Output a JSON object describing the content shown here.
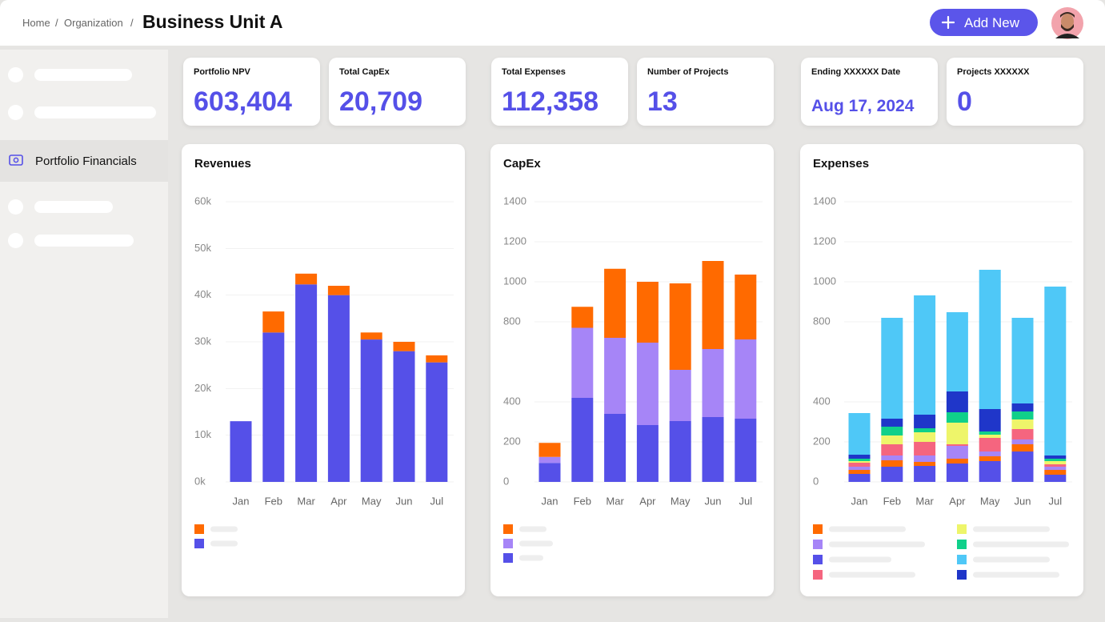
{
  "header": {
    "breadcrumb": [
      "Home",
      "Organization"
    ],
    "title": "Business Unit A",
    "button": "Add New"
  },
  "sidebar": {
    "active_item": "Portfolio Financials"
  },
  "kpis": [
    {
      "label": "Portfolio NPV",
      "value": "603,404"
    },
    {
      "label": "Total CapEx",
      "value": "20,709"
    },
    {
      "label": "Total Expenses",
      "value": "112,358"
    },
    {
      "label": "Number of Projects",
      "value": "13"
    },
    {
      "label": "Ending XXXXXX Date",
      "value": "Aug 17, 2024"
    },
    {
      "label": "Projects XXXXXX",
      "value": "0"
    }
  ],
  "chart_data": [
    {
      "type": "bar",
      "stacked": true,
      "title": "Revenues",
      "categories": [
        "Jan",
        "Feb",
        "Mar",
        "Apr",
        "May",
        "Jun",
        "Jul"
      ],
      "series": [
        {
          "color": "#ff6a00",
          "values": [
            0,
            4500,
            2300,
            2000,
            1500,
            2000,
            1500
          ]
        },
        {
          "color": "#5550e8",
          "values": [
            13000,
            32000,
            42300,
            40000,
            30500,
            28000,
            25600
          ]
        }
      ],
      "ylim": [
        0,
        60000
      ],
      "yticks": [
        {
          "value": 0,
          "label": "0k"
        },
        {
          "value": 10000,
          "label": "10k"
        },
        {
          "value": 20000,
          "label": "20k"
        },
        {
          "value": 30000,
          "label": "30k"
        },
        {
          "value": 40000,
          "label": "40k"
        },
        {
          "value": 50000,
          "label": "50k"
        },
        {
          "value": 60000,
          "label": "60k"
        }
      ],
      "grid": true
    },
    {
      "type": "bar",
      "stacked": true,
      "title": "CapEx",
      "categories": [
        "Jan",
        "Feb",
        "Mar",
        "Apr",
        "May",
        "Jun",
        "Jul"
      ],
      "series": [
        {
          "color": "#ff6a00",
          "values": [
            70,
            105,
            345,
            304,
            432,
            440,
            324
          ]
        },
        {
          "color": "#a685f7",
          "values": [
            30,
            350,
            380,
            412,
            256,
            340,
            396
          ]
        },
        {
          "color": "#5550e8",
          "values": [
            95,
            420,
            340,
            284,
            304,
            324,
            316
          ]
        }
      ],
      "ylim": [
        0,
        1400
      ],
      "yticks": [
        0,
        200,
        400,
        800,
        1000,
        1200,
        1400
      ],
      "grid": true
    },
    {
      "type": "bar",
      "stacked": true,
      "title": "Expenses",
      "categories": [
        "Jan",
        "Feb",
        "Mar",
        "Apr",
        "May",
        "Jun",
        "Jul"
      ],
      "series": [
        {
          "color": "#ff6a00",
          "values": [
            20,
            32,
            20,
            24,
            24,
            36,
            24
          ]
        },
        {
          "color": "#a685f7",
          "values": [
            16,
            24,
            32,
            64,
            24,
            24,
            16
          ]
        },
        {
          "color": "#5550e8",
          "values": [
            40,
            76,
            80,
            92,
            104,
            152,
            36
          ]
        },
        {
          "color": "#f5657f",
          "values": [
            20,
            56,
            68,
            8,
            68,
            52,
            12
          ]
        },
        {
          "color": "#eef56a",
          "values": [
            8,
            44,
            48,
            108,
            16,
            48,
            16
          ]
        },
        {
          "color": "#10d08a",
          "values": [
            12,
            44,
            20,
            52,
            16,
            40,
            12
          ]
        },
        {
          "color": "#4fc8f7",
          "values": [
            208,
            504,
            596,
            396,
            696,
            428,
            844
          ]
        },
        {
          "color": "#1f36c9",
          "values": [
            20,
            40,
            68,
            104,
            112,
            40,
            16
          ]
        }
      ],
      "ylim": [
        0,
        1400
      ],
      "yticks": [
        0,
        200,
        400,
        800,
        1000,
        1200,
        1400
      ],
      "grid": true
    }
  ]
}
